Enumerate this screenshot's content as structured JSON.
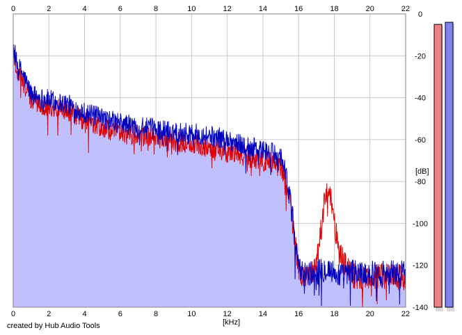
{
  "chart_data": {
    "type": "area",
    "xlabel": "[kHz]",
    "ylabel": "[dB]",
    "xlim": [
      0,
      22
    ],
    "ylim": [
      -140,
      0
    ],
    "x_ticks": [
      0,
      2,
      4,
      6,
      8,
      10,
      12,
      14,
      16,
      18,
      20,
      22
    ],
    "y_ticks": [
      0,
      -20,
      -40,
      -60,
      -80,
      -100,
      -120,
      -140
    ],
    "grid": true,
    "series": [
      {
        "color": "#0000c0",
        "fill": "#c0c0ff",
        "x": [
          0,
          0.2,
          0.5,
          1,
          1.5,
          2,
          3,
          4,
          5,
          6,
          7,
          8,
          9,
          10,
          11,
          12,
          13,
          14,
          15,
          15.2,
          15.5,
          15.7,
          16,
          16.3,
          16.8,
          17.2,
          17.6,
          18,
          18.5,
          19,
          20,
          21,
          22
        ],
        "values": [
          -15,
          -24,
          -28,
          -38,
          -40,
          -41,
          -43,
          -47,
          -50,
          -52,
          -54,
          -55,
          -56,
          -57,
          -58,
          -60,
          -63,
          -65,
          -68,
          -72,
          -88,
          -100,
          -122,
          -124,
          -124,
          -123,
          -121,
          -124,
          -125,
          -123,
          -124,
          -123,
          -124
        ]
      },
      {
        "color": "#e00000",
        "x": [
          0,
          0.2,
          0.5,
          1,
          1.5,
          2,
          3,
          4,
          5,
          6,
          7,
          8,
          9,
          10,
          11,
          12,
          13,
          14,
          15,
          15.2,
          15.5,
          15.7,
          16,
          16.5,
          17,
          17.3,
          17.5,
          17.8,
          18,
          18.3,
          19,
          20,
          21,
          22
        ],
        "values": [
          -17,
          -27,
          -32,
          -41,
          -43,
          -44,
          -46,
          -51,
          -55,
          -57,
          -58,
          -59,
          -61,
          -62,
          -64,
          -66,
          -68,
          -70,
          -72,
          -78,
          -90,
          -102,
          -124,
          -126,
          -120,
          -100,
          -84,
          -86,
          -100,
          -115,
          -125,
          -126,
          -125,
          -126
        ]
      }
    ],
    "level_meters": [
      {
        "color": "#f08080",
        "level_db": -5
      },
      {
        "color": "#8080f0",
        "level_db": -4
      }
    ]
  },
  "footer": {
    "credit": "created by Hub Audio Tools"
  }
}
